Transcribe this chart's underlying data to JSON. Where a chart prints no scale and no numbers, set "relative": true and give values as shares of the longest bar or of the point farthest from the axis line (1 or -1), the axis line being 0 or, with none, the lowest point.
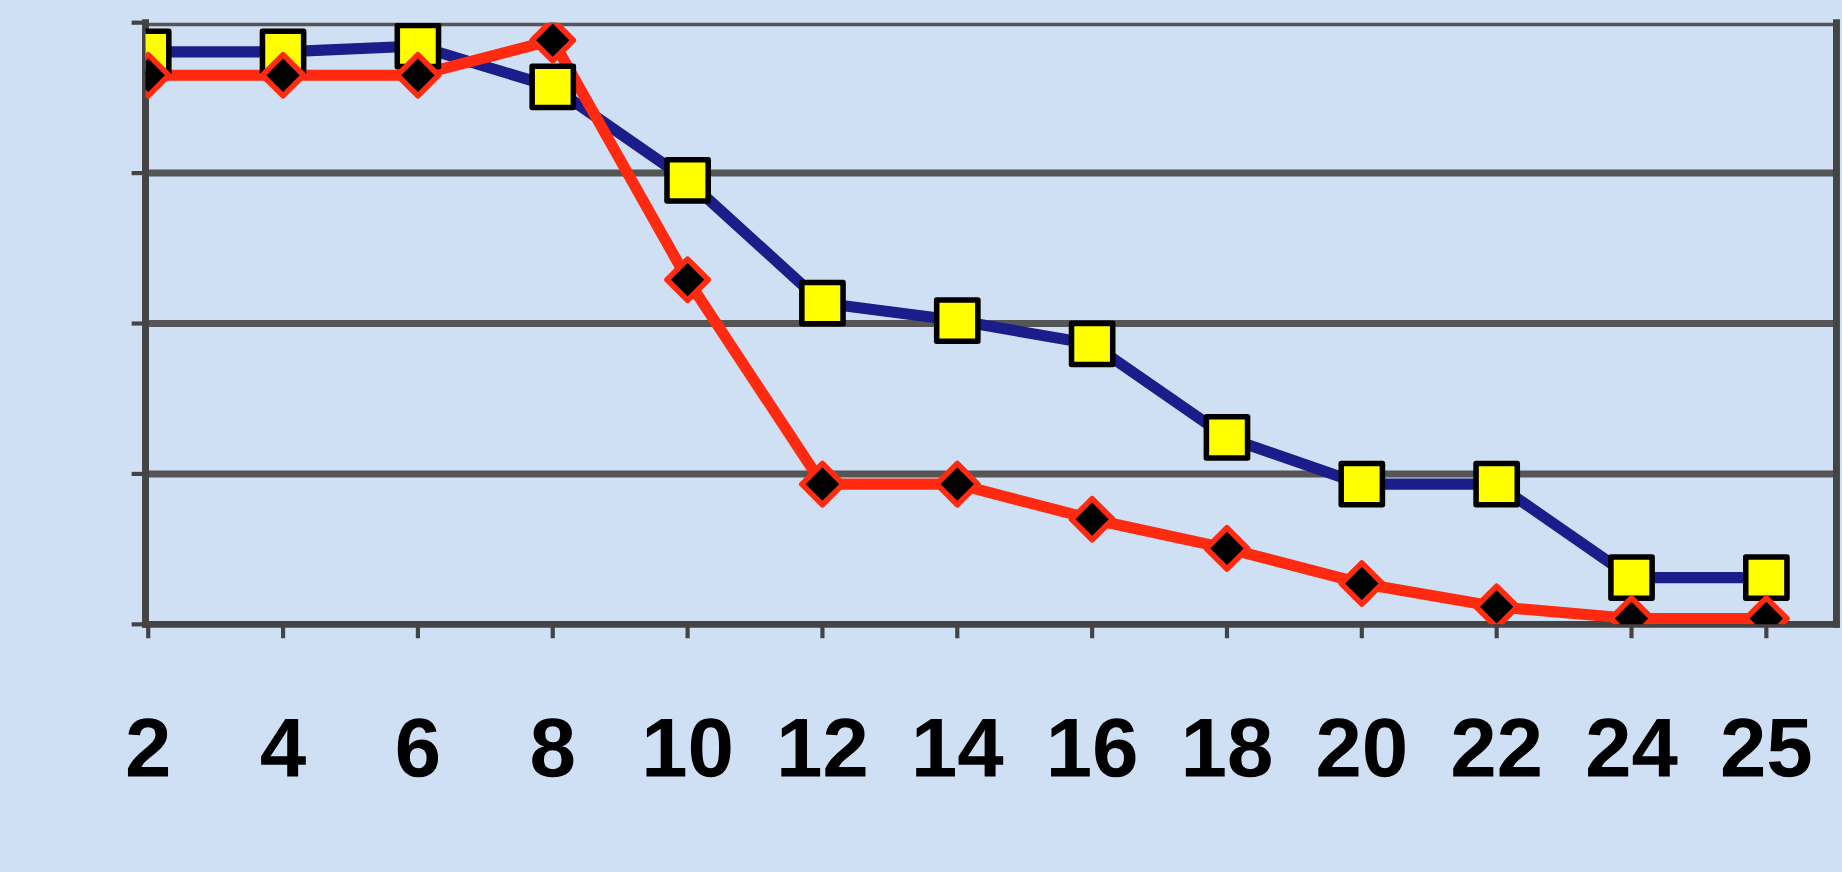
{
  "chart_data": {
    "type": "line",
    "relative": true,
    "grid": "y",
    "legend": false,
    "categories": [
      "2",
      "4",
      "6",
      "8",
      "10",
      "12",
      "14",
      "16",
      "18",
      "20",
      "22",
      "24",
      "25"
    ],
    "series": [
      {
        "color": "#1c1c8a",
        "marker": "square",
        "values": [
          0.98,
          0.98,
          0.99,
          0.92,
          0.76,
          0.55,
          0.52,
          0.48,
          0.32,
          0.24,
          0.24,
          0.08,
          0.08
        ]
      },
      {
        "color": "#ff2a10",
        "marker": "diamond",
        "values": [
          0.94,
          0.94,
          0.94,
          1,
          0.59,
          0.24,
          0.24,
          0.18,
          0.13,
          0.07,
          0.03,
          0.01,
          0.01
        ]
      }
    ]
  }
}
